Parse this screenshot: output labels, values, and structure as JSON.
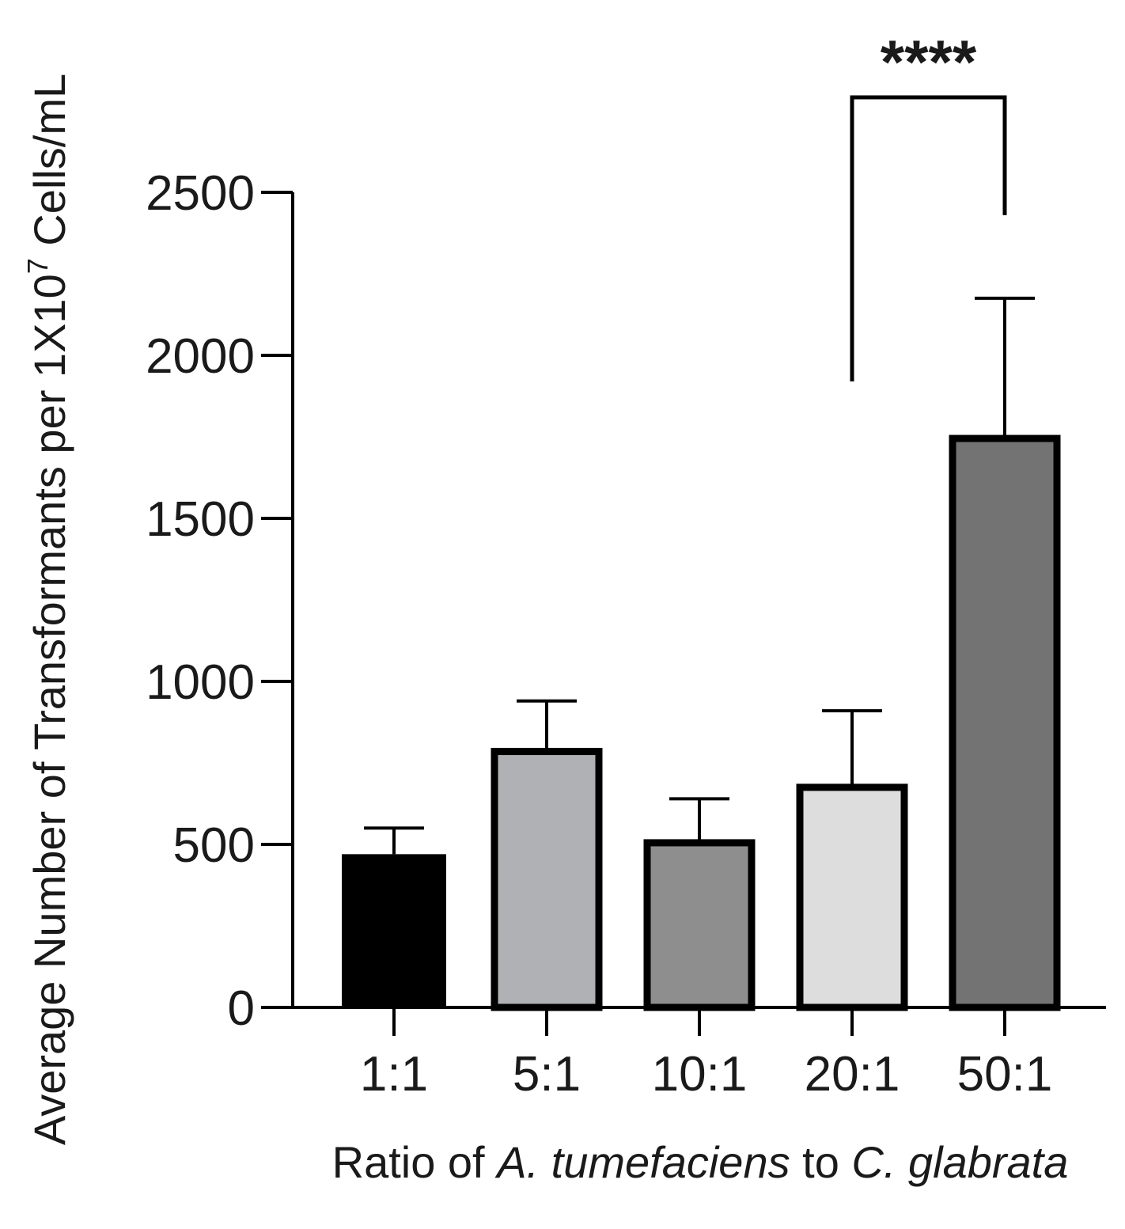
{
  "chart_data": {
    "type": "bar",
    "title": "",
    "categories": [
      "1:1",
      "5:1",
      "10:1",
      "20:1",
      "50:1"
    ],
    "values": [
      470,
      785,
      505,
      675,
      1745
    ],
    "error_upper": [
      550,
      940,
      640,
      910,
      2175
    ],
    "colors": [
      "#000000",
      "#b0b1b4",
      "#8e8e8e",
      "#dddddd",
      "#737373"
    ],
    "ylim": [
      0,
      2500
    ],
    "yticks": [
      0,
      500,
      1000,
      1500,
      2000,
      2500
    ],
    "ylabel": {
      "main": "Average Number of Transformants per 1X10",
      "superscript": "7",
      "suffix": " Cells/mL"
    },
    "xlabel": {
      "prefix": "Ratio of ",
      "italic1": "A. tumefaciens",
      "middle": " to ",
      "italic2": "C. glabrata"
    },
    "significance": {
      "from": "20:1",
      "to": "50:1",
      "label": "****",
      "left_arm_bottom": 1920,
      "right_arm_bottom": 2430
    }
  }
}
